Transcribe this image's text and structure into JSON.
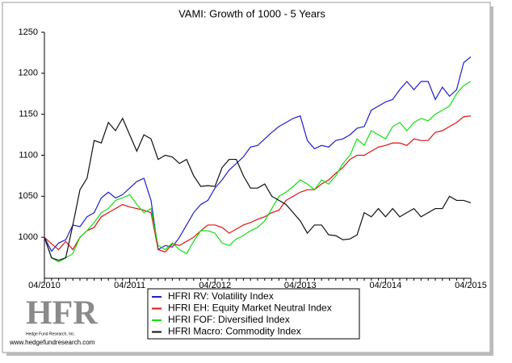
{
  "chart_data": {
    "type": "line",
    "title": "VAMI: Growth of 1000 - 5 Years",
    "categories": [
      "04/2010",
      null,
      null,
      null,
      null,
      null,
      null,
      null,
      null,
      null,
      null,
      null,
      "04/2011",
      null,
      null,
      null,
      null,
      null,
      null,
      null,
      null,
      null,
      null,
      null,
      "04/2012",
      null,
      null,
      null,
      null,
      null,
      null,
      null,
      null,
      null,
      null,
      null,
      "04/2013",
      null,
      null,
      null,
      null,
      null,
      null,
      null,
      null,
      null,
      null,
      null,
      "04/2014",
      null,
      null,
      null,
      null,
      null,
      null,
      null,
      null,
      null,
      null,
      null,
      "04/2015"
    ],
    "ylim": [
      950,
      1250
    ],
    "yticks": [
      1000,
      1050,
      1100,
      1150,
      1200,
      1250
    ],
    "grid": false,
    "series": [
      {
        "name": "HFRI RV: Volatility Index",
        "color": "#1f1fd0",
        "values": [
          1000,
          983,
          993,
          997,
          1015,
          1013,
          1025,
          1030,
          1048,
          1055,
          1048,
          1052,
          1060,
          1068,
          1072,
          1045,
          985,
          990,
          988,
          1000,
          1015,
          1030,
          1040,
          1045,
          1060,
          1070,
          1082,
          1090,
          1098,
          1110,
          1112,
          1120,
          1128,
          1135,
          1140,
          1145,
          1148,
          1118,
          1108,
          1112,
          1110,
          1118,
          1120,
          1125,
          1133,
          1135,
          1155,
          1160,
          1165,
          1168,
          1180,
          1190,
          1180,
          1190,
          1190,
          1168,
          1183,
          1172,
          1180,
          1213,
          1220
        ]
      },
      {
        "name": "HFRI EH: Equity Market Neutral Index",
        "color": "#e01010",
        "values": [
          1000,
          992,
          985,
          995,
          985,
          1000,
          1008,
          1012,
          1025,
          1030,
          1035,
          1040,
          1037,
          1035,
          1033,
          1030,
          985,
          982,
          992,
          990,
          995,
          1000,
          1008,
          1015,
          1015,
          1012,
          1005,
          1010,
          1015,
          1018,
          1022,
          1025,
          1030,
          1033,
          1045,
          1050,
          1055,
          1058,
          1058,
          1065,
          1070,
          1078,
          1085,
          1095,
          1100,
          1100,
          1105,
          1110,
          1112,
          1115,
          1115,
          1112,
          1120,
          1118,
          1118,
          1128,
          1130,
          1135,
          1140,
          1147,
          1148
        ]
      },
      {
        "name": "HFRI FOF: Diversified Index",
        "color": "#10e010",
        "values": [
          1000,
          975,
          970,
          975,
          980,
          1000,
          1008,
          1018,
          1030,
          1035,
          1045,
          1048,
          1052,
          1040,
          1030,
          1035,
          990,
          985,
          993,
          985,
          980,
          995,
          1008,
          1008,
          1005,
          993,
          990,
          998,
          1002,
          1008,
          1012,
          1020,
          1035,
          1050,
          1055,
          1062,
          1070,
          1065,
          1058,
          1070,
          1065,
          1075,
          1090,
          1100,
          1120,
          1112,
          1130,
          1125,
          1120,
          1135,
          1140,
          1130,
          1140,
          1145,
          1142,
          1150,
          1155,
          1160,
          1175,
          1185,
          1190
        ]
      },
      {
        "name": "HFRI Macro: Commodity Index",
        "color": "#101010",
        "values": [
          1000,
          975,
          972,
          975,
          1015,
          1058,
          1072,
          1118,
          1115,
          1140,
          1130,
          1145,
          1125,
          1105,
          1125,
          1120,
          1095,
          1100,
          1098,
          1090,
          1095,
          1075,
          1062,
          1063,
          1062,
          1085,
          1095,
          1095,
          1075,
          1060,
          1060,
          1065,
          1050,
          1045,
          1040,
          1030,
          1020,
          1005,
          1015,
          1015,
          1003,
          1002,
          997,
          998,
          1003,
          1030,
          1025,
          1035,
          1025,
          1035,
          1025,
          1030,
          1035,
          1025,
          1030,
          1035,
          1035,
          1050,
          1045,
          1045,
          1042
        ]
      }
    ]
  },
  "logo": {
    "mark": "HFR",
    "company": "Hedge Fund Research, Inc.",
    "url": "www.hedgefundresearch.com"
  }
}
